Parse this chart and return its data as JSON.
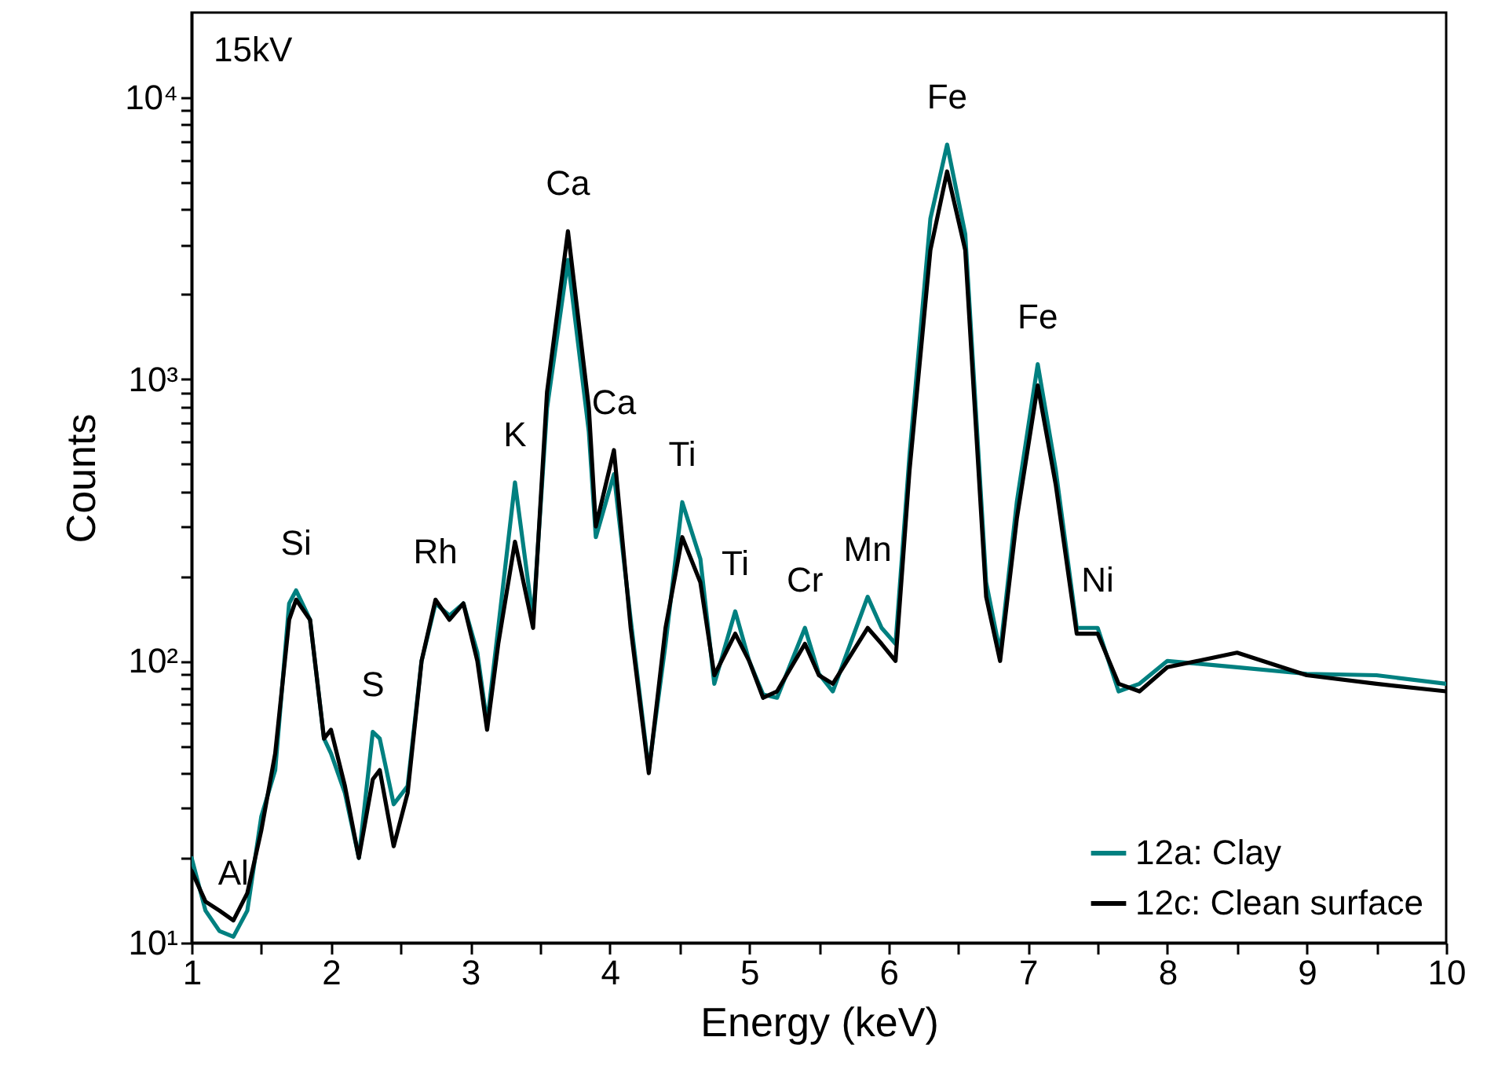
{
  "chart_data": {
    "type": "line",
    "xlabel": "Energy (keV)",
    "ylabel": "Counts",
    "log": "y",
    "grid": false,
    "legend": "bottom right",
    "line_style": "solid",
    "xlim": [
      1,
      10
    ],
    "ylim": [
      10,
      20000
    ],
    "xticks": [
      1,
      {
        "value": 1.5,
        "label": null
      },
      2,
      {
        "value": 2.5,
        "label": null
      },
      3,
      {
        "value": 3.5,
        "label": null
      },
      4,
      {
        "value": 4.5,
        "label": null
      },
      5,
      {
        "value": 5.5,
        "label": null
      },
      6,
      {
        "value": 6.5,
        "label": null
      },
      7,
      {
        "value": 7.5,
        "label": null
      },
      8,
      {
        "value": 8.5,
        "label": null
      },
      9,
      {
        "value": 9.5,
        "label": null
      },
      10
    ],
    "yticks": [
      {
        "value": 10,
        "label": "10¹"
      },
      {
        "value": 20,
        "label": null
      },
      {
        "value": 30,
        "label": null
      },
      {
        "value": 40,
        "label": null
      },
      {
        "value": 50,
        "label": null
      },
      {
        "value": 60,
        "label": null
      },
      {
        "value": 70,
        "label": null
      },
      {
        "value": 80,
        "label": null
      },
      {
        "value": 90,
        "label": null
      },
      {
        "value": 100,
        "label": "10²"
      },
      {
        "value": 200,
        "label": null
      },
      {
        "value": 300,
        "label": null
      },
      {
        "value": 400,
        "label": null
      },
      {
        "value": 500,
        "label": null
      },
      {
        "value": 600,
        "label": null
      },
      {
        "value": 700,
        "label": null
      },
      {
        "value": 800,
        "label": null
      },
      {
        "value": 900,
        "label": null
      },
      {
        "value": 1000,
        "label": "10³"
      },
      {
        "value": 2000,
        "label": null
      },
      {
        "value": 3000,
        "label": null
      },
      {
        "value": 4000,
        "label": null
      },
      {
        "value": 5000,
        "label": null
      },
      {
        "value": 6000,
        "label": null
      },
      {
        "value": 7000,
        "label": null
      },
      {
        "value": 8000,
        "label": null
      },
      {
        "value": 9000,
        "label": null
      },
      {
        "value": 10000,
        "label": "10⁴"
      }
    ],
    "x": [
      1.0,
      1.1,
      1.2,
      1.3,
      1.4,
      1.5,
      1.6,
      1.7,
      1.75,
      1.85,
      1.95,
      2.0,
      2.1,
      2.2,
      2.3,
      2.35,
      2.45,
      2.55,
      2.65,
      2.75,
      2.85,
      2.95,
      3.05,
      3.12,
      3.2,
      3.32,
      3.45,
      3.55,
      3.7,
      3.85,
      3.9,
      4.03,
      4.15,
      4.28,
      4.4,
      4.52,
      4.65,
      4.75,
      4.9,
      5.0,
      5.1,
      5.2,
      5.4,
      5.5,
      5.6,
      5.85,
      5.95,
      6.05,
      6.15,
      6.3,
      6.42,
      6.55,
      6.7,
      6.8,
      6.92,
      7.07,
      7.2,
      7.35,
      7.5,
      7.65,
      7.8,
      8.0,
      8.5,
      9.0,
      9.5,
      10.0
    ],
    "series": [
      {
        "name": "12a: Clay",
        "color": "#008080",
        "values": [
          20,
          13,
          11,
          10.5,
          13,
          28,
          41,
          160,
          178,
          140,
          53,
          47,
          34,
          20,
          56,
          53,
          31,
          36,
          100,
          160,
          145,
          160,
          107,
          60,
          131,
          430,
          140,
          790,
          2650,
          650,
          275,
          460,
          140,
          41,
          115,
          366,
          230,
          83,
          150,
          100,
          76,
          74,
          131,
          90,
          78,
          169,
          131,
          115,
          535,
          3710,
          6800,
          3270,
          190,
          107,
          366,
          1130,
          473,
          131,
          131,
          78,
          83,
          100,
          95,
          90,
          89,
          83
        ]
      },
      {
        "name": "12c: Clean surface",
        "color": "#000000",
        "values": [
          18,
          14,
          13,
          12,
          15,
          25,
          47,
          140,
          165,
          140,
          53,
          57,
          36,
          20,
          38,
          41,
          22,
          34,
          100,
          165,
          140,
          160,
          100,
          57,
          115,
          265,
          131,
          900,
          3350,
          790,
          300,
          560,
          131,
          40,
          131,
          275,
          190,
          89,
          125,
          100,
          74,
          78,
          115,
          89,
          83,
          131,
          115,
          100,
          473,
          2870,
          5460,
          2870,
          169,
          100,
          320,
          950,
          420,
          125,
          125,
          83,
          78,
          95,
          107,
          89,
          83,
          78
        ]
      }
    ],
    "annotations": [
      "15kV",
      {
        "text": "Al",
        "x": 1.3,
        "y": 12
      },
      {
        "text": "Si",
        "x": 1.75,
        "y": 178
      },
      {
        "text": "S",
        "x": 2.3,
        "y": 56
      },
      {
        "text": "Rh",
        "x": 2.75,
        "y": 165
      },
      {
        "text": "K",
        "x": 3.32,
        "y": 430
      },
      {
        "text": "Ca",
        "x": 3.7,
        "y": 3350
      },
      {
        "text": "Ca",
        "x": 4.03,
        "y": 560
      },
      {
        "text": "Ti",
        "x": 4.52,
        "y": 366
      },
      {
        "text": "Ti",
        "x": 4.9,
        "y": 150
      },
      {
        "text": "Cr",
        "x": 5.4,
        "y": 131
      },
      {
        "text": "Mn",
        "x": 5.85,
        "y": 169
      },
      {
        "text": "Fe",
        "x": 6.42,
        "y": 6800
      },
      {
        "text": "Fe",
        "x": 7.07,
        "y": 1130
      },
      {
        "text": "Ni",
        "x": 7.5,
        "y": 131
      }
    ]
  }
}
